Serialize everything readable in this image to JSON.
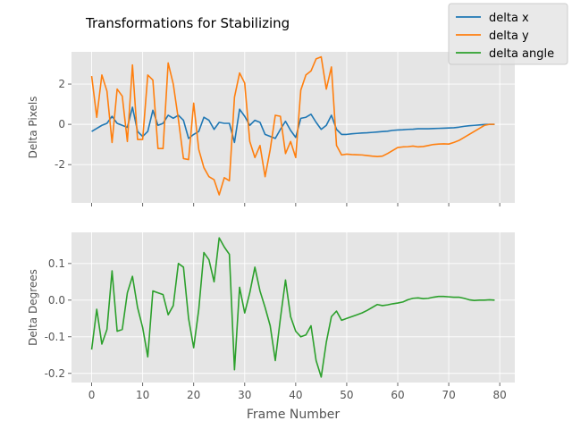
{
  "chart_data": {
    "type": "line",
    "title": "Transformations for Stabilizing",
    "xlabel": "Frame Number",
    "xlim": [
      -3.95,
      82.95
    ],
    "xticks": [
      0,
      10,
      20,
      30,
      40,
      50,
      60,
      70,
      80
    ],
    "legend": {
      "placement": "top-right",
      "entries": [
        "delta x",
        "delta y",
        "delta angle"
      ]
    },
    "grid": true,
    "colors": {
      "delta_x": "#1f77b4",
      "delta_y": "#ff7f0e",
      "delta_angle": "#2ca02c",
      "background": "#e5e5e5",
      "grid": "#ffffff"
    },
    "panels": [
      {
        "ylabel": "Delta Pixels",
        "ylim": [
          -3.9,
          3.6
        ],
        "yticks": [
          -2,
          0,
          2
        ],
        "series": [
          {
            "name": "delta x",
            "color": "#1f77b4",
            "values": [
              -0.35,
              -0.2,
              -0.05,
              0.05,
              0.4,
              0.05,
              -0.05,
              -0.15,
              0.85,
              -0.35,
              -0.6,
              -0.35,
              0.7,
              -0.05,
              0.05,
              0.45,
              0.3,
              0.45,
              0.2,
              -0.7,
              -0.5,
              -0.35,
              0.35,
              0.2,
              -0.25,
              0.1,
              0.05,
              0.05,
              -0.9,
              0.75,
              0.4,
              -0.05,
              0.2,
              0.1,
              -0.5,
              -0.6,
              -0.7,
              -0.25,
              0.15,
              -0.3,
              -0.65,
              0.3,
              0.35,
              0.5,
              0.1,
              -0.25,
              -0.05,
              0.45,
              -0.25,
              -0.5,
              -0.5,
              -0.47,
              -0.45,
              -0.43,
              -0.42,
              -0.4,
              -0.38,
              -0.36,
              -0.34,
              -0.3,
              -0.28,
              -0.27,
              -0.25,
              -0.24,
              -0.22,
              -0.22,
              -0.22,
              -0.21,
              -0.2,
              -0.19,
              -0.18,
              -0.17,
              -0.14,
              -0.1,
              -0.07,
              -0.05,
              -0.03,
              -0.01,
              0.0,
              0.0
            ]
          },
          {
            "name": "delta y",
            "color": "#ff7f0e",
            "values": [
              2.4,
              0.35,
              2.45,
              1.65,
              -0.9,
              1.75,
              1.4,
              -0.85,
              2.95,
              -0.75,
              -0.75,
              2.45,
              2.2,
              -1.2,
              -1.2,
              3.05,
              2.0,
              0.25,
              -1.7,
              -1.75,
              1.05,
              -1.25,
              -2.15,
              -2.6,
              -2.75,
              -3.5,
              -2.65,
              -2.8,
              1.35,
              2.55,
              2.05,
              -0.85,
              -1.65,
              -1.05,
              -2.6,
              -1.25,
              0.45,
              0.4,
              -1.45,
              -0.85,
              -1.65,
              1.7,
              2.45,
              2.65,
              3.25,
              3.35,
              1.75,
              2.85,
              -1.05,
              -1.52,
              -1.48,
              -1.5,
              -1.51,
              -1.52,
              -1.55,
              -1.58,
              -1.6,
              -1.58,
              -1.45,
              -1.3,
              -1.15,
              -1.12,
              -1.11,
              -1.08,
              -1.12,
              -1.1,
              -1.05,
              -1.0,
              -0.98,
              -0.97,
              -0.98,
              -0.9,
              -0.8,
              -0.65,
              -0.5,
              -0.35,
              -0.2,
              -0.05,
              0.0,
              0.0
            ]
          }
        ]
      },
      {
        "ylabel": "Delta Degrees",
        "ylim": [
          -0.225,
          0.185
        ],
        "yticks": [
          -0.2,
          -0.1,
          0.0,
          0.1
        ],
        "series": [
          {
            "name": "delta angle",
            "color": "#2ca02c",
            "values": [
              -0.135,
              -0.025,
              -0.12,
              -0.08,
              0.08,
              -0.085,
              -0.08,
              0.02,
              0.065,
              -0.02,
              -0.075,
              -0.155,
              0.025,
              0.02,
              0.015,
              -0.04,
              -0.015,
              0.1,
              0.09,
              -0.05,
              -0.13,
              -0.025,
              0.13,
              0.11,
              0.05,
              0.17,
              0.145,
              0.125,
              -0.19,
              0.035,
              -0.035,
              0.02,
              0.09,
              0.025,
              -0.02,
              -0.07,
              -0.165,
              -0.05,
              0.055,
              -0.045,
              -0.085,
              -0.1,
              -0.095,
              -0.07,
              -0.165,
              -0.21,
              -0.115,
              -0.045,
              -0.03,
              -0.055,
              -0.05,
              -0.045,
              -0.04,
              -0.035,
              -0.028,
              -0.02,
              -0.012,
              -0.015,
              -0.013,
              -0.01,
              -0.008,
              -0.005,
              0.001,
              0.005,
              0.006,
              0.004,
              0.005,
              0.008,
              0.01,
              0.01,
              0.009,
              0.008,
              0.008,
              0.005,
              0.001,
              -0.001,
              0.0,
              0.0,
              0.001,
              0.0
            ]
          }
        ]
      }
    ]
  }
}
